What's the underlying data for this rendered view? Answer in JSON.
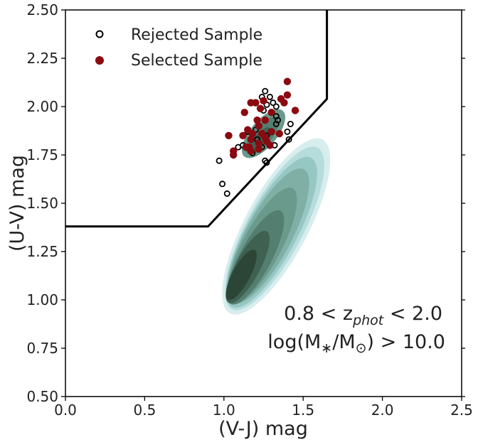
{
  "chart_data": {
    "type": "scatter",
    "xlabel": "(V-J) mag",
    "ylabel": "(U-V) mag",
    "xlim": [
      0.0,
      2.5
    ],
    "ylim": [
      0.5,
      2.5
    ],
    "xticks": [
      "0.0",
      "0.5",
      "1.0",
      "1.5",
      "2.0",
      "2.5"
    ],
    "yticks": [
      "0.50",
      "0.75",
      "1.00",
      "1.25",
      "1.50",
      "1.75",
      "2.00",
      "2.25",
      "2.50"
    ],
    "grid": false,
    "legend_position": "top-left",
    "annotation": {
      "line1_prefix": "0.8 < z",
      "line1_sub": "phot",
      "line1_suffix": " < 2.0",
      "line2_prefix": "log(M",
      "line2_sub1": "∗",
      "line2_mid": "/M",
      "line2_sub2": "⊙",
      "line2_suffix": ") > 10.0"
    },
    "selection_boundary": [
      [
        0.0,
        1.38
      ],
      [
        0.9,
        1.38
      ],
      [
        1.65,
        2.04
      ],
      [
        1.65,
        2.5
      ]
    ],
    "density_contours": {
      "colors": [
        "#f2f9f9",
        "#d8edee",
        "#b6dcdc",
        "#97c7c3",
        "#7fafa5",
        "#6a9a8b",
        "#547e6f",
        "#3e6152",
        "#2c4536"
      ],
      "levels": [
        {
          "cx": 1.33,
          "cy": 1.38,
          "rx": 0.56,
          "ry": 0.18,
          "angle": 62
        },
        {
          "cx": 1.32,
          "cy": 1.37,
          "rx": 0.52,
          "ry": 0.16,
          "angle": 62
        },
        {
          "cx": 1.3,
          "cy": 1.35,
          "rx": 0.48,
          "ry": 0.145,
          "angle": 62
        },
        {
          "cx": 1.28,
          "cy": 1.33,
          "rx": 0.43,
          "ry": 0.13,
          "angle": 62
        },
        {
          "cx": 1.24,
          "cy": 1.28,
          "rx": 0.37,
          "ry": 0.11,
          "angle": 62
        },
        {
          "cx": 1.2,
          "cy": 1.22,
          "rx": 0.3,
          "ry": 0.09,
          "angle": 62
        },
        {
          "cx": 1.15,
          "cy": 1.17,
          "rx": 0.23,
          "ry": 0.07,
          "angle": 62
        },
        {
          "cx": 1.11,
          "cy": 1.13,
          "rx": 0.16,
          "ry": 0.05,
          "angle": 62
        }
      ],
      "upper_blob": [
        {
          "cx": 1.25,
          "cy": 1.86,
          "rx": 0.17,
          "ry": 0.075,
          "angle": 50
        },
        {
          "cx": 1.24,
          "cy": 1.85,
          "rx": 0.13,
          "ry": 0.055,
          "angle": 50
        },
        {
          "cx": 1.23,
          "cy": 1.83,
          "rx": 0.085,
          "ry": 0.035,
          "angle": 50
        }
      ]
    },
    "series": [
      {
        "name": "Rejected Sample",
        "marker": "open-circle",
        "color": "#000000",
        "points": [
          [
            1.26,
            2.08
          ],
          [
            1.24,
            2.05
          ],
          [
            1.29,
            2.05
          ],
          [
            1.27,
            2.01
          ],
          [
            1.31,
            2.02
          ],
          [
            1.33,
            2.0
          ],
          [
            1.25,
            1.98
          ],
          [
            1.33,
            1.95
          ],
          [
            1.34,
            1.93
          ],
          [
            1.33,
            1.91
          ],
          [
            1.42,
            1.91
          ],
          [
            1.4,
            1.87
          ],
          [
            1.15,
            1.87
          ],
          [
            1.2,
            1.88
          ],
          [
            1.27,
            1.85
          ],
          [
            1.21,
            1.83
          ],
          [
            1.41,
            1.83
          ],
          [
            1.32,
            1.8
          ],
          [
            1.12,
            1.8
          ],
          [
            1.24,
            1.79
          ],
          [
            1.09,
            1.79
          ],
          [
            1.18,
            1.76
          ],
          [
            1.26,
            1.72
          ],
          [
            1.27,
            1.71
          ],
          [
            0.97,
            1.72
          ],
          [
            0.99,
            1.6
          ],
          [
            1.02,
            1.55
          ]
        ]
      },
      {
        "name": "Selected Sample",
        "color": "#8a0a10",
        "marker": "filled-circle",
        "points": [
          [
            1.4,
            2.13
          ],
          [
            1.4,
            2.06
          ],
          [
            1.36,
            2.04
          ],
          [
            1.38,
            2.02
          ],
          [
            1.45,
            1.98
          ],
          [
            1.25,
            2.03
          ],
          [
            1.17,
            2.02
          ],
          [
            1.2,
            2.02
          ],
          [
            1.23,
            1.99
          ],
          [
            1.13,
            1.97
          ],
          [
            1.3,
            1.97
          ],
          [
            1.21,
            1.93
          ],
          [
            1.26,
            1.93
          ],
          [
            1.22,
            1.9
          ],
          [
            1.15,
            1.88
          ],
          [
            1.24,
            1.86
          ],
          [
            1.3,
            1.87
          ],
          [
            1.35,
            1.86
          ],
          [
            1.18,
            1.86
          ],
          [
            1.12,
            1.85
          ],
          [
            1.03,
            1.85
          ],
          [
            1.26,
            1.84
          ],
          [
            1.17,
            1.83
          ],
          [
            1.22,
            1.81
          ],
          [
            1.27,
            1.82
          ],
          [
            1.29,
            1.8
          ],
          [
            1.14,
            1.79
          ],
          [
            1.16,
            1.79
          ],
          [
            1.17,
            1.77
          ],
          [
            1.06,
            1.77
          ],
          [
            1.06,
            1.75
          ],
          [
            1.22,
            1.78
          ]
        ]
      }
    ]
  }
}
